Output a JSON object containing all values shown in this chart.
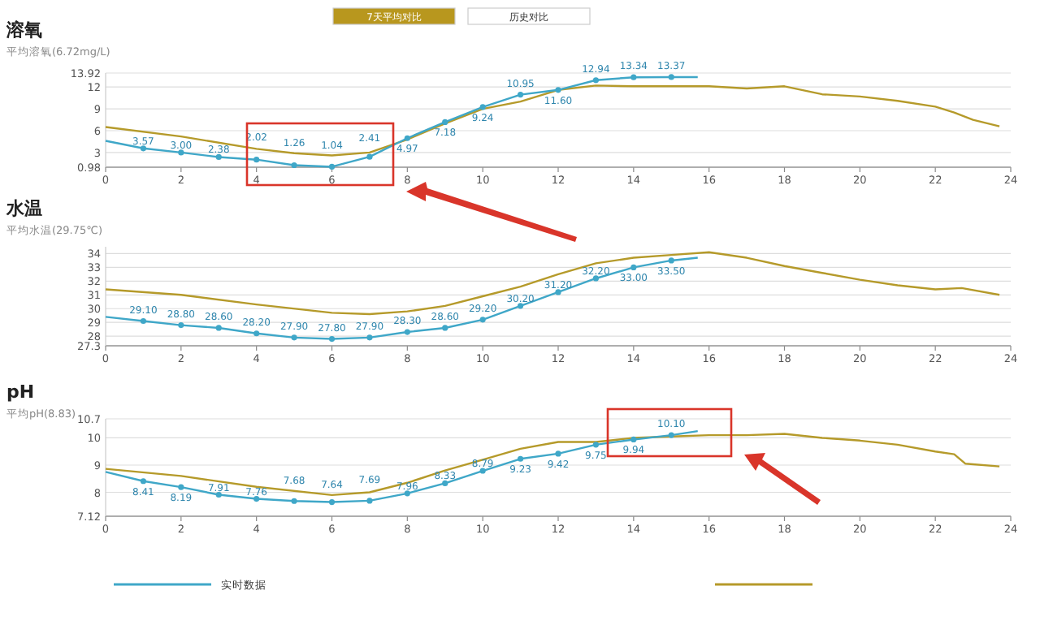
{
  "chart_data": [
    {
      "type": "line",
      "title": "溶氧",
      "subtitle": "平均溶氧(6.72mg/L)",
      "annotations": [
        "7天平均对比",
        "历史对比"
      ],
      "xlim": [
        0,
        24
      ],
      "xticks": [
        0,
        2,
        4,
        6,
        8,
        10,
        12,
        14,
        16,
        18,
        20,
        22,
        24
      ],
      "ylim": [
        0.98,
        13.92
      ],
      "yticks": [
        0.98,
        3,
        6,
        9,
        12,
        13.92
      ],
      "grid": "y",
      "tick_labels": true,
      "series": [
        {
          "marker": "circle",
          "color": "#3fa7c8",
          "x": [
            0,
            1,
            2,
            3,
            4,
            5,
            6,
            7,
            8,
            9,
            10,
            11,
            12,
            13,
            14,
            15,
            15.7
          ],
          "values": [
            4.6,
            3.57,
            3.0,
            2.38,
            2.02,
            1.26,
            1.04,
            2.41,
            4.97,
            7.18,
            9.24,
            10.95,
            11.6,
            12.94,
            13.34,
            13.37,
            13.37
          ],
          "value_labels": [
            null,
            "3.57",
            "3.00",
            "2.38",
            "2.02",
            "1.26",
            "1.04",
            "2.41",
            "4.97",
            "7.18",
            "9.24",
            "10.95",
            "11.60",
            "12.94",
            "13.34",
            "13.37",
            null
          ]
        },
        {
          "color": "#b59a2a",
          "x": [
            0,
            2,
            4,
            5,
            6,
            7,
            8,
            9,
            10,
            11,
            12,
            13,
            14,
            15,
            16,
            17,
            18,
            19,
            20,
            21,
            22,
            22.5,
            23,
            23.7
          ],
          "values": [
            6.5,
            5.2,
            3.5,
            2.9,
            2.6,
            3.0,
            4.8,
            7.0,
            9.0,
            10.0,
            11.6,
            12.2,
            12.1,
            12.1,
            12.1,
            11.8,
            12.1,
            11.0,
            10.7,
            10.1,
            9.3,
            8.5,
            7.5,
            6.6
          ]
        }
      ]
    },
    {
      "type": "line",
      "title": "水温",
      "subtitle": "平均水温(29.75℃)",
      "xlim": [
        0,
        24
      ],
      "xticks": [
        0,
        2,
        4,
        6,
        8,
        10,
        12,
        14,
        16,
        18,
        20,
        22,
        24
      ],
      "ylim": [
        27.3,
        34.5
      ],
      "yticks": [
        27.3,
        28,
        29,
        30,
        31,
        32,
        33,
        34
      ],
      "grid": "y",
      "series": [
        {
          "marker": "circle",
          "color": "#3fa7c8",
          "x": [
            0,
            1,
            2,
            3,
            4,
            5,
            6,
            7,
            8,
            9,
            10,
            11,
            12,
            13,
            14,
            15,
            15.7
          ],
          "values": [
            29.4,
            29.1,
            28.8,
            28.6,
            28.2,
            27.9,
            27.8,
            27.9,
            28.3,
            28.6,
            29.2,
            30.2,
            31.2,
            32.2,
            33.0,
            33.5,
            33.7
          ],
          "value_labels": [
            null,
            "29.10",
            "28.80",
            "28.60",
            "28.20",
            "27.90",
            "27.80",
            "27.90",
            "28.30",
            "28.60",
            "29.20",
            "30.20",
            "31.20",
            "32.20",
            "33.00",
            "33.50",
            null
          ]
        },
        {
          "color": "#b59a2a",
          "x": [
            0,
            2,
            4,
            6,
            7,
            8,
            9,
            10,
            11,
            12,
            13,
            14,
            15,
            16,
            17,
            18,
            19,
            20,
            21,
            22,
            22.7,
            23.7
          ],
          "values": [
            31.4,
            31.0,
            30.3,
            29.7,
            29.6,
            29.8,
            30.2,
            30.9,
            31.6,
            32.5,
            33.3,
            33.7,
            33.9,
            34.1,
            33.7,
            33.1,
            32.6,
            32.1,
            31.7,
            31.4,
            31.5,
            31.0
          ]
        }
      ]
    },
    {
      "type": "line",
      "title": "pH",
      "subtitle": "平均pH(8.83)",
      "xlim": [
        0,
        24
      ],
      "xticks": [
        0,
        2,
        4,
        6,
        8,
        10,
        12,
        14,
        16,
        18,
        20,
        22,
        24
      ],
      "ylim": [
        7.12,
        10.7
      ],
      "yticks": [
        7.12,
        8,
        9,
        10,
        10.7
      ],
      "grid": "y",
      "legend": "bottom",
      "series": [
        {
          "name": "实时数据",
          "marker": "circle",
          "color": "#3fa7c8",
          "x": [
            0,
            1,
            2,
            3,
            4,
            5,
            6,
            7,
            8,
            9,
            10,
            11,
            12,
            13,
            14,
            15,
            15.7
          ],
          "values": [
            8.75,
            8.41,
            8.19,
            7.91,
            7.76,
            7.68,
            7.64,
            7.69,
            7.96,
            8.33,
            8.79,
            9.23,
            9.42,
            9.75,
            9.94,
            10.1,
            10.25
          ],
          "value_labels": [
            null,
            "8.41",
            "8.19",
            "7.91",
            "7.76",
            "7.68",
            "7.64",
            "7.69",
            "7.96",
            "8.33",
            "8.79",
            "9.23",
            "9.42",
            "9.75",
            "9.94",
            "10.10",
            null
          ]
        },
        {
          "color": "#b59a2a",
          "x": [
            0,
            2,
            4,
            6,
            7,
            8,
            9,
            10,
            11,
            12,
            13,
            14,
            15,
            16,
            17,
            18,
            19,
            20,
            21,
            22,
            22.5,
            22.8,
            23.7
          ],
          "values": [
            8.86,
            8.6,
            8.2,
            7.9,
            8.0,
            8.35,
            8.8,
            9.2,
            9.6,
            9.85,
            9.85,
            10.0,
            10.05,
            10.1,
            10.1,
            10.15,
            10.0,
            9.9,
            9.75,
            9.5,
            9.4,
            9.05,
            8.95
          ]
        }
      ]
    }
  ]
}
